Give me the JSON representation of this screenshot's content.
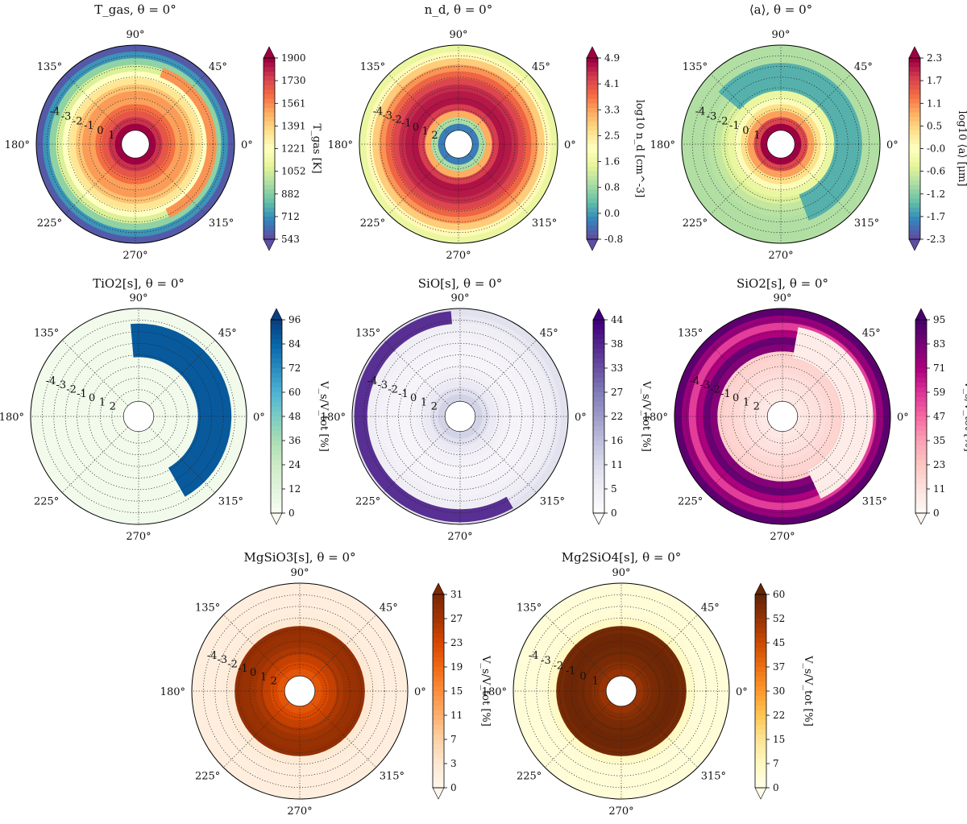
{
  "chart_data": [
    {
      "type": "heatmap",
      "title": "T_gas, θ = 0°",
      "cbar_label": "T_gas [K]",
      "cbar_ticks": [
        "1900",
        "1730",
        "1561",
        "1391",
        "1221",
        "1052",
        "882",
        "712",
        "543"
      ],
      "angle_labels": [
        "0°",
        "45°",
        "90°",
        "135°",
        "180°",
        "225°",
        "270°",
        "315°"
      ],
      "radial_labels": [
        "-4",
        "-3",
        "-2",
        "-1",
        "0",
        "1"
      ],
      "colormap": [
        "#5e4fa2",
        "#3288bd",
        "#66c2a5",
        "#abdda4",
        "#e6f598",
        "#ffffbf",
        "#fee08b",
        "#fdae61",
        "#f46d43",
        "#d53e4f",
        "#9e0142"
      ],
      "profile": [
        1.0,
        0.92,
        0.85,
        0.8,
        0.72,
        0.73,
        0.66,
        0.58,
        0.5,
        0.38,
        0.26,
        0.12,
        0.02
      ],
      "overlay": {
        "a0": -65,
        "a1": 70,
        "r0": 0.72,
        "r1": 0.82,
        "value": 0.74
      }
    },
    {
      "type": "heatmap",
      "title": "n_d, θ = 0°",
      "cbar_label": "log10 n_d [cm^-3]",
      "cbar_ticks": [
        "4.9",
        "4.1",
        "3.3",
        "2.5",
        "1.6",
        "0.8",
        "0.0",
        "-0.8"
      ],
      "angle_labels": [
        "0°",
        "45°",
        "90°",
        "135°",
        "180°",
        "225°",
        "270°",
        "315°"
      ],
      "radial_labels": [
        "-4",
        "-3",
        "-2",
        "-1",
        "0",
        "1",
        "2"
      ],
      "colormap": [
        "#5e4fa2",
        "#3288bd",
        "#66c2a5",
        "#abdda4",
        "#e6f598",
        "#ffffbf",
        "#fee08b",
        "#fdae61",
        "#f46d43",
        "#d53e4f",
        "#9e0142"
      ],
      "profile": [
        0.08,
        0.3,
        0.7,
        0.9,
        0.97,
        0.96,
        0.93,
        0.88,
        0.82,
        0.74,
        0.64,
        0.52,
        0.42
      ]
    },
    {
      "type": "heatmap",
      "title": "⟨a⟩, θ = 0°",
      "cbar_label": "log10 ⟨a⟩ [μm]",
      "cbar_ticks": [
        "2.3",
        "1.7",
        "1.1",
        "0.5",
        "-0.0",
        "-0.6",
        "-1.2",
        "-1.7",
        "-2.3"
      ],
      "angle_labels": [
        "0°",
        "45°",
        "90°",
        "135°",
        "180°",
        "225°",
        "270°",
        "315°"
      ],
      "radial_labels": [
        "-4",
        "-3",
        "-2",
        "-1",
        "0",
        "1"
      ],
      "colormap": [
        "#5e4fa2",
        "#3288bd",
        "#66c2a5",
        "#abdda4",
        "#e6f598",
        "#ffffbf",
        "#fee08b",
        "#fdae61",
        "#f46d43",
        "#d53e4f",
        "#9e0142"
      ],
      "profile": [
        1.0,
        0.88,
        0.72,
        0.6,
        0.48,
        0.42,
        0.38,
        0.34,
        0.32,
        0.31,
        0.31,
        0.31,
        0.31
      ],
      "overlay": {
        "a0": -70,
        "a1": 140,
        "r0": 0.54,
        "r1": 0.82,
        "value": 0.17
      }
    },
    {
      "type": "heatmap",
      "title": "TiO2[s], θ = 0°",
      "cbar_label": "V_s/V_tot [%]",
      "cbar_ticks": [
        "96",
        "84",
        "72",
        "60",
        "48",
        "36",
        "24",
        "12",
        "0"
      ],
      "angle_labels": [
        "0°",
        "45°",
        "90°",
        "135°",
        "180°",
        "225°",
        "270°",
        "315°"
      ],
      "radial_labels": [
        "-4",
        "-3",
        "-2",
        "-1",
        "0",
        "1",
        "2"
      ],
      "colormap": [
        "#f7fcf0",
        "#e0f3db",
        "#ccebc5",
        "#a8ddb5",
        "#7bccc4",
        "#4eb3d3",
        "#2b8cbe",
        "#0868ac",
        "#084081"
      ],
      "profile": [
        0.03,
        0.03,
        0.03,
        0.03,
        0.03,
        0.03,
        0.03,
        0.03,
        0.03,
        0.03,
        0.03,
        0.03,
        0.03
      ],
      "overlay": {
        "a0": -60,
        "a1": 95,
        "r0": 0.55,
        "r1": 0.86,
        "value": 0.92
      }
    },
    {
      "type": "heatmap",
      "title": "SiO[s], θ = 0°",
      "cbar_label": "V_s/V_tot [%]",
      "cbar_ticks": [
        "44",
        "38",
        "33",
        "27",
        "22",
        "16",
        "11",
        "5",
        "0"
      ],
      "angle_labels": [
        "0°",
        "45°",
        "90°",
        "135°",
        "180°",
        "225°",
        "270°",
        "315°"
      ],
      "radial_labels": [
        "-4",
        "-3",
        "-2",
        "-1",
        "0",
        "1",
        "2"
      ],
      "colormap": [
        "#fcfbfd",
        "#efedf5",
        "#dadaeb",
        "#bcbddc",
        "#9e9ac8",
        "#807dba",
        "#6a51a3",
        "#54278f",
        "#3f007d"
      ],
      "profile": [
        0.28,
        0.22,
        0.15,
        0.1,
        0.08,
        0.06,
        0.06,
        0.07,
        0.08,
        0.1,
        0.12,
        0.16,
        0.2
      ],
      "overlay": {
        "a0": 95,
        "a1": 300,
        "r0": 0.86,
        "r1": 0.98,
        "value": 0.85
      }
    },
    {
      "type": "heatmap",
      "title": "SiO2[s], θ = 0°",
      "cbar_label": "V_s/V_tot [%]",
      "cbar_ticks": [
        "95",
        "83",
        "71",
        "59",
        "47",
        "35",
        "23",
        "11",
        "0"
      ],
      "angle_labels": [
        "0°",
        "45°",
        "90°",
        "135°",
        "180°",
        "225°",
        "270°",
        "315°"
      ],
      "radial_labels": [
        "-4",
        "-3",
        "-2",
        "-1",
        "0",
        "1",
        "2"
      ],
      "colormap": [
        "#fff7f3",
        "#fde0dd",
        "#fcc5c0",
        "#fa9fb5",
        "#f768a1",
        "#dd3497",
        "#ae017e",
        "#7a0177",
        "#49006a"
      ],
      "profile": [
        0.08,
        0.1,
        0.12,
        0.14,
        0.16,
        0.18,
        0.2,
        0.85,
        0.92,
        0.75,
        0.6,
        0.8,
        0.95
      ],
      "overlay": {
        "a0": -65,
        "a1": 80,
        "r0": 0.55,
        "r1": 0.84,
        "value": 0.06
      }
    },
    {
      "type": "heatmap",
      "title": "MgSiO3[s], θ = 0°",
      "cbar_label": "V_s/V_tot [%]",
      "cbar_ticks": [
        "31",
        "27",
        "23",
        "19",
        "15",
        "11",
        "7",
        "3",
        "0"
      ],
      "angle_labels": [
        "0°",
        "45°",
        "90°",
        "135°",
        "180°",
        "225°",
        "270°",
        "315°"
      ],
      "radial_labels": [
        "-4",
        "-3",
        "-2",
        "-1",
        "0",
        "1",
        "2"
      ],
      "colormap": [
        "#fff5eb",
        "#fee6ce",
        "#fdd0a2",
        "#fdae6b",
        "#fd8d3c",
        "#f16913",
        "#d94801",
        "#a63603",
        "#7f2704"
      ],
      "colormap_alt": [
        "#fff5f0",
        "#fee0d2",
        "#fcbba1",
        "#fc9272",
        "#fb6a4a",
        "#ef3b2c",
        "#cb181d",
        "#a50f15",
        "#67000d"
      ],
      "profile": [
        0.7,
        0.75,
        0.8,
        0.86,
        0.9,
        0.92,
        0.93,
        0.1,
        0.07,
        0.06,
        0.06,
        0.06,
        0.06
      ]
    },
    {
      "type": "heatmap",
      "title": "Mg2SiO4[s], θ = 0°",
      "cbar_label": "V_s/V_tot [%]",
      "cbar_ticks": [
        "60",
        "52",
        "45",
        "37",
        "30",
        "22",
        "15",
        "7",
        "0"
      ],
      "angle_labels": [
        "0°",
        "45°",
        "90°",
        "135°",
        "180°",
        "225°",
        "270°",
        "315°"
      ],
      "radial_labels": [
        "-4",
        "-3",
        "-2",
        "-1",
        "0",
        "1"
      ],
      "colormap": [
        "#ffffe5",
        "#fff7bc",
        "#fee391",
        "#fec44f",
        "#fe9929",
        "#ec7014",
        "#cc4c02",
        "#993404",
        "#662506"
      ],
      "profile": [
        0.88,
        0.92,
        0.95,
        0.97,
        0.98,
        0.98,
        0.96,
        0.1,
        0.05,
        0.04,
        0.04,
        0.04,
        0.04
      ]
    }
  ]
}
